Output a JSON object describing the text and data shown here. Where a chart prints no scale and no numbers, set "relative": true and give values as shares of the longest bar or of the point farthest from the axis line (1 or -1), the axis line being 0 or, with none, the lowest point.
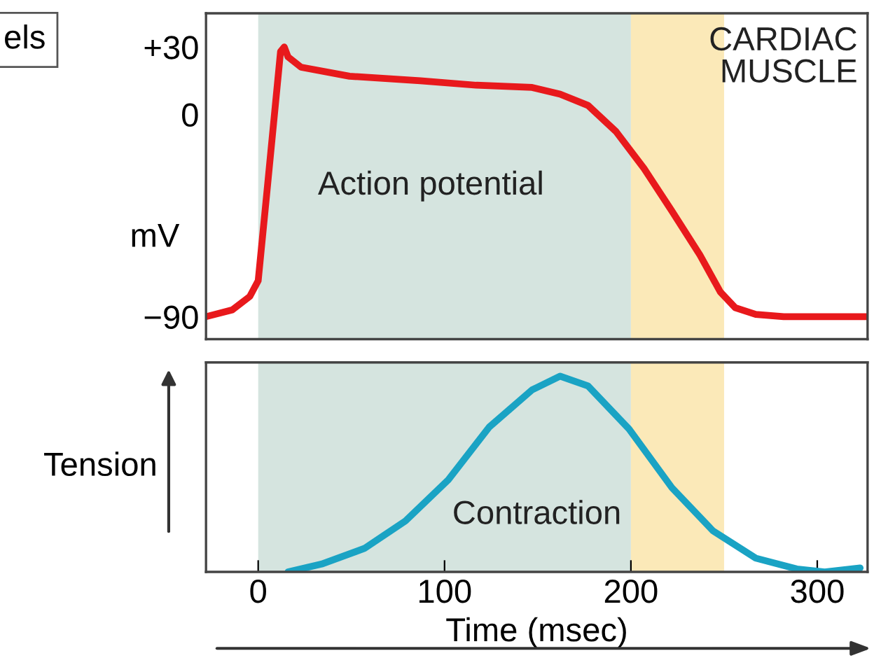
{
  "chart_data": [
    {
      "type": "line",
      "ylabel": "mV",
      "annotations": [
        "els",
        "CARDIAC\nMUSCLE",
        "Action potential"
      ],
      "x": [
        -28,
        -14,
        -4.5,
        0,
        4.5,
        12,
        14,
        16,
        23,
        49,
        87,
        117,
        147,
        162,
        177,
        192,
        207,
        222,
        237,
        248,
        256,
        267,
        282,
        327
      ],
      "series": [
        {
          "color": "#e8191c",
          "values": [
            -90,
            -87,
            -81,
            -74,
            -36,
            28,
            30,
            25.6,
            21,
            17,
            15,
            13,
            12,
            9,
            4,
            -7.6,
            -24,
            -43,
            -62.5,
            -79,
            -86,
            -89,
            -90,
            -90
          ]
        }
      ],
      "xlim": [
        -28,
        327
      ],
      "ylim": [
        -100,
        45
      ],
      "yticks": [
        {
          "value": 30,
          "label": "+30"
        },
        0,
        {
          "value": -90,
          "label": "−90"
        }
      ],
      "tick_labels": "y",
      "grid": false,
      "legend": false,
      "bands": [
        {
          "axis": "x",
          "from": 0,
          "to": 200,
          "color": "#d5e4df"
        },
        {
          "axis": "x",
          "from": 200,
          "to": 250,
          "color": "#fbe9b8"
        }
      ]
    },
    {
      "type": "line",
      "ylabel": "Tension",
      "xlabel": "Time (msec)",
      "relative": true,
      "annotations": [
        "Contraction"
      ],
      "x": [
        16,
        34,
        57,
        79,
        102,
        124,
        147,
        162,
        177,
        199,
        222,
        244,
        267,
        289,
        304,
        323
      ],
      "series": [
        {
          "color": "#1aa3c4",
          "values": [
            0,
            0.04,
            0.12,
            0.26,
            0.47,
            0.74,
            0.93,
            1,
            0.95,
            0.73,
            0.43,
            0.21,
            0.07,
            0.015,
            0,
            0.02
          ]
        }
      ],
      "xlim": [
        -28,
        327
      ],
      "xticks": [
        0,
        100,
        200,
        300
      ],
      "tick_labels": "x",
      "grid": false,
      "legend": false,
      "bands": [
        {
          "axis": "x",
          "from": 0,
          "to": 200,
          "color": "#d5e4df"
        },
        {
          "axis": "x",
          "from": 200,
          "to": 250,
          "color": "#fbe9b8"
        }
      ]
    }
  ]
}
